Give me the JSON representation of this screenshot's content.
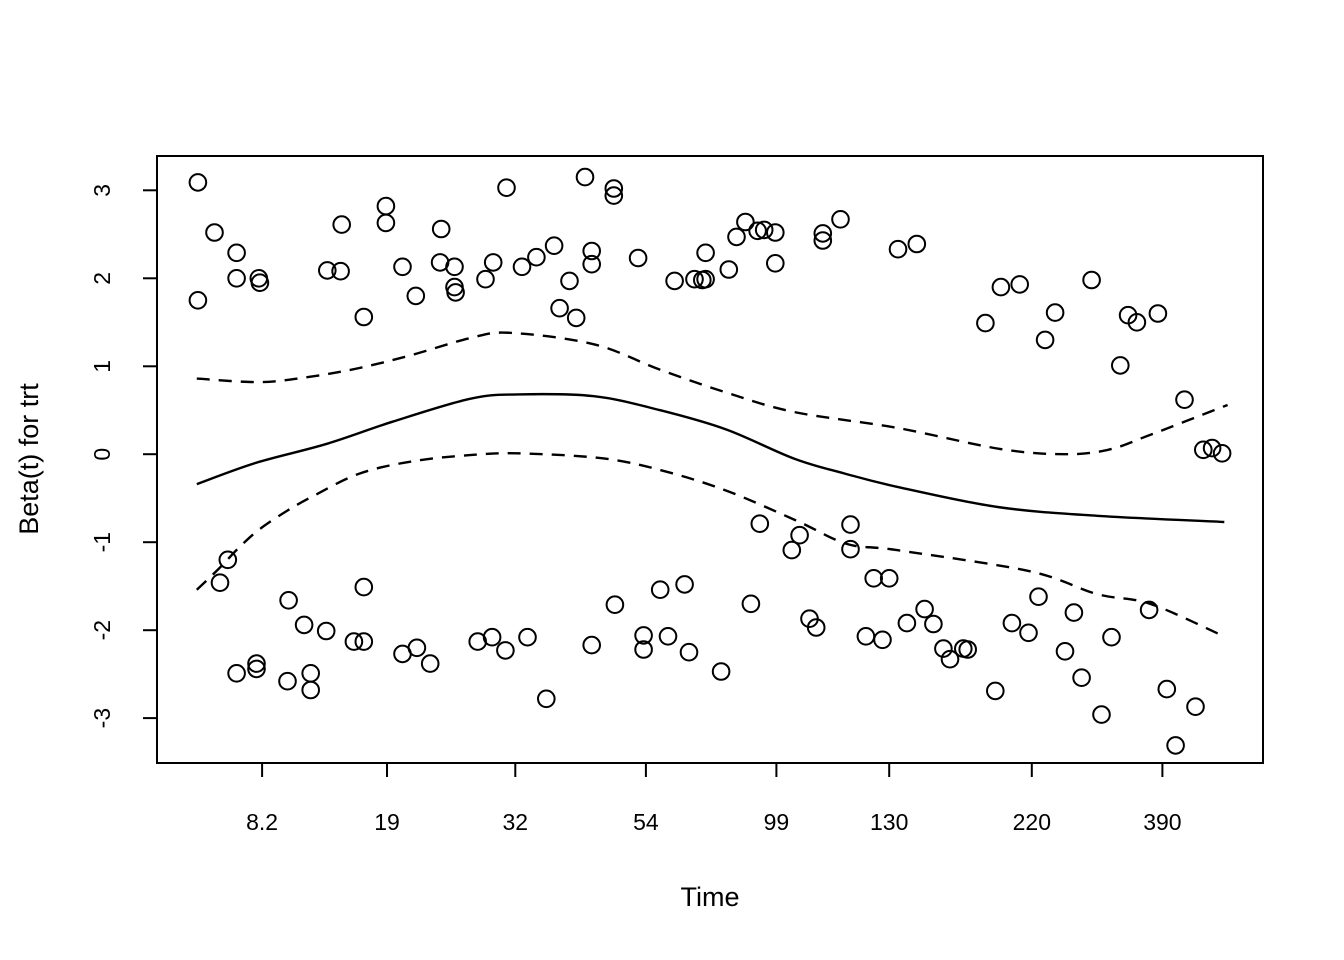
{
  "figure": {
    "background": "#ffffff",
    "stroke_color": "#000000"
  },
  "chart_data": {
    "type": "scatter",
    "title": "",
    "xlabel": "Time",
    "ylabel": "Beta(t) for trt",
    "x_scale": "nonlinear survival-time axis (cox.zph style); point x given as axis fraction 0-1",
    "x_unit": "axis-fraction",
    "ylim": [
      -3.51,
      3.39
    ],
    "grid": false,
    "legend": "none",
    "x_ticks": [
      {
        "label": "8.2",
        "fx": 0.095
      },
      {
        "label": "19",
        "fx": 0.208
      },
      {
        "label": "32",
        "fx": 0.324
      },
      {
        "label": "54",
        "fx": 0.442
      },
      {
        "label": "99",
        "fx": 0.56
      },
      {
        "label": "130",
        "fx": 0.662
      },
      {
        "label": "220",
        "fx": 0.791
      },
      {
        "label": "390",
        "fx": 0.909
      }
    ],
    "y_ticks": [
      {
        "label": "-3",
        "value": -3
      },
      {
        "label": "-2",
        "value": -2
      },
      {
        "label": "-1",
        "value": -1
      },
      {
        "label": "0",
        "value": 0
      },
      {
        "label": "1",
        "value": 1
      },
      {
        "label": "2",
        "value": 2
      },
      {
        "label": "3",
        "value": 3
      }
    ],
    "series": [
      {
        "name": "schoenfeld-residuals",
        "type": "scatter",
        "marker": "open-circle",
        "marker_radius": 8.3,
        "points": [
          [
            0.037,
            3.09
          ],
          [
            0.052,
            2.52
          ],
          [
            0.072,
            2.29
          ],
          [
            0.072,
            2.0
          ],
          [
            0.092,
            2.0
          ],
          [
            0.093,
            1.95
          ],
          [
            0.037,
            1.75
          ],
          [
            0.167,
            2.61
          ],
          [
            0.207,
            2.82
          ],
          [
            0.207,
            2.63
          ],
          [
            0.154,
            2.09
          ],
          [
            0.166,
            2.08
          ],
          [
            0.257,
            2.56
          ],
          [
            0.222,
            2.13
          ],
          [
            0.256,
            2.18
          ],
          [
            0.269,
            2.13
          ],
          [
            0.269,
            1.9
          ],
          [
            0.27,
            1.84
          ],
          [
            0.234,
            1.8
          ],
          [
            0.187,
            1.56
          ],
          [
            0.304,
            2.18
          ],
          [
            0.297,
            1.99
          ],
          [
            0.316,
            3.03
          ],
          [
            0.33,
            2.13
          ],
          [
            0.387,
            3.15
          ],
          [
            0.413,
            3.02
          ],
          [
            0.413,
            2.94
          ],
          [
            0.359,
            2.37
          ],
          [
            0.343,
            2.24
          ],
          [
            0.393,
            2.31
          ],
          [
            0.393,
            2.16
          ],
          [
            0.373,
            1.97
          ],
          [
            0.435,
            2.23
          ],
          [
            0.532,
            2.64
          ],
          [
            0.524,
            2.47
          ],
          [
            0.543,
            2.54
          ],
          [
            0.549,
            2.55
          ],
          [
            0.559,
            2.52
          ],
          [
            0.496,
            2.29
          ],
          [
            0.517,
            2.1
          ],
          [
            0.559,
            2.17
          ],
          [
            0.468,
            1.97
          ],
          [
            0.486,
            1.99
          ],
          [
            0.493,
            1.98
          ],
          [
            0.496,
            1.99
          ],
          [
            0.602,
            2.51
          ],
          [
            0.602,
            2.43
          ],
          [
            0.618,
            2.67
          ],
          [
            0.364,
            1.66
          ],
          [
            0.379,
            1.55
          ],
          [
            0.67,
            2.33
          ],
          [
            0.687,
            2.39
          ],
          [
            0.763,
            1.9
          ],
          [
            0.78,
            1.93
          ],
          [
            0.845,
            1.98
          ],
          [
            0.749,
            1.49
          ],
          [
            0.812,
            1.61
          ],
          [
            0.803,
            1.3
          ],
          [
            0.878,
            1.58
          ],
          [
            0.886,
            1.5
          ],
          [
            0.905,
            1.6
          ],
          [
            0.871,
            1.01
          ],
          [
            0.929,
            0.62
          ],
          [
            0.946,
            0.05
          ],
          [
            0.954,
            0.07
          ],
          [
            0.963,
            0.01
          ],
          [
            0.064,
            -1.2
          ],
          [
            0.057,
            -1.46
          ],
          [
            0.187,
            -1.51
          ],
          [
            0.119,
            -1.66
          ],
          [
            0.133,
            -1.94
          ],
          [
            0.153,
            -2.01
          ],
          [
            0.178,
            -2.13
          ],
          [
            0.187,
            -2.13
          ],
          [
            0.222,
            -2.27
          ],
          [
            0.235,
            -2.2
          ],
          [
            0.247,
            -2.38
          ],
          [
            0.29,
            -2.13
          ],
          [
            0.303,
            -2.08
          ],
          [
            0.315,
            -2.23
          ],
          [
            0.072,
            -2.49
          ],
          [
            0.09,
            -2.38
          ],
          [
            0.09,
            -2.44
          ],
          [
            0.118,
            -2.58
          ],
          [
            0.139,
            -2.49
          ],
          [
            0.139,
            -2.68
          ],
          [
            0.545,
            -0.79
          ],
          [
            0.581,
            -0.92
          ],
          [
            0.574,
            -1.09
          ],
          [
            0.627,
            -0.8
          ],
          [
            0.627,
            -1.08
          ],
          [
            0.648,
            -1.41
          ],
          [
            0.662,
            -1.41
          ],
          [
            0.477,
            -1.48
          ],
          [
            0.455,
            -1.54
          ],
          [
            0.414,
            -1.71
          ],
          [
            0.537,
            -1.7
          ],
          [
            0.335,
            -2.08
          ],
          [
            0.393,
            -2.17
          ],
          [
            0.44,
            -2.06
          ],
          [
            0.44,
            -2.22
          ],
          [
            0.462,
            -2.07
          ],
          [
            0.481,
            -2.25
          ],
          [
            0.51,
            -2.47
          ],
          [
            0.352,
            -2.78
          ],
          [
            0.59,
            -1.87
          ],
          [
            0.596,
            -1.97
          ],
          [
            0.641,
            -2.07
          ],
          [
            0.656,
            -2.11
          ],
          [
            0.694,
            -1.76
          ],
          [
            0.678,
            -1.92
          ],
          [
            0.702,
            -1.93
          ],
          [
            0.711,
            -2.21
          ],
          [
            0.729,
            -2.21
          ],
          [
            0.733,
            -2.22
          ],
          [
            0.717,
            -2.33
          ],
          [
            0.797,
            -1.62
          ],
          [
            0.829,
            -1.8
          ],
          [
            0.773,
            -1.92
          ],
          [
            0.788,
            -2.03
          ],
          [
            0.897,
            -1.77
          ],
          [
            0.863,
            -2.08
          ],
          [
            0.821,
            -2.24
          ],
          [
            0.836,
            -2.54
          ],
          [
            0.758,
            -2.69
          ],
          [
            0.854,
            -2.96
          ],
          [
            0.913,
            -2.67
          ],
          [
            0.939,
            -2.87
          ],
          [
            0.921,
            -3.31
          ]
        ]
      },
      {
        "name": "spline-fit",
        "type": "line",
        "style": "solid",
        "points": [
          [
            0.036,
            -0.34
          ],
          [
            0.089,
            -0.1
          ],
          [
            0.154,
            0.12
          ],
          [
            0.213,
            0.37
          ],
          [
            0.283,
            0.63
          ],
          [
            0.326,
            0.68
          ],
          [
            0.395,
            0.66
          ],
          [
            0.455,
            0.5
          ],
          [
            0.515,
            0.28
          ],
          [
            0.576,
            -0.05
          ],
          [
            0.622,
            -0.22
          ],
          [
            0.669,
            -0.37
          ],
          [
            0.76,
            -0.6
          ],
          [
            0.85,
            -0.7
          ],
          [
            0.965,
            -0.77
          ]
        ]
      },
      {
        "name": "upper-confidence-band",
        "type": "line",
        "style": "dashed",
        "points": [
          [
            0.036,
            0.86
          ],
          [
            0.093,
            0.82
          ],
          [
            0.138,
            0.88
          ],
          [
            0.183,
            0.98
          ],
          [
            0.231,
            1.13
          ],
          [
            0.283,
            1.32
          ],
          [
            0.319,
            1.38
          ],
          [
            0.395,
            1.25
          ],
          [
            0.455,
            0.96
          ],
          [
            0.515,
            0.7
          ],
          [
            0.576,
            0.48
          ],
          [
            0.669,
            0.3
          ],
          [
            0.762,
            0.06
          ],
          [
            0.82,
            0.0
          ],
          [
            0.86,
            0.05
          ],
          [
            0.898,
            0.22
          ],
          [
            0.968,
            0.56
          ]
        ]
      },
      {
        "name": "lower-confidence-band",
        "type": "line",
        "style": "dashed",
        "points": [
          [
            0.036,
            -1.54
          ],
          [
            0.056,
            -1.3
          ],
          [
            0.075,
            -1.05
          ],
          [
            0.093,
            -0.85
          ],
          [
            0.118,
            -0.64
          ],
          [
            0.142,
            -0.47
          ],
          [
            0.183,
            -0.22
          ],
          [
            0.231,
            -0.08
          ],
          [
            0.283,
            -0.01
          ],
          [
            0.326,
            0.01
          ],
          [
            0.405,
            -0.05
          ],
          [
            0.464,
            -0.21
          ],
          [
            0.518,
            -0.43
          ],
          [
            0.579,
            -0.76
          ],
          [
            0.624,
            -1.02
          ],
          [
            0.669,
            -1.09
          ],
          [
            0.789,
            -1.33
          ],
          [
            0.85,
            -1.59
          ],
          [
            0.898,
            -1.7
          ],
          [
            0.963,
            -2.06
          ]
        ]
      }
    ]
  }
}
